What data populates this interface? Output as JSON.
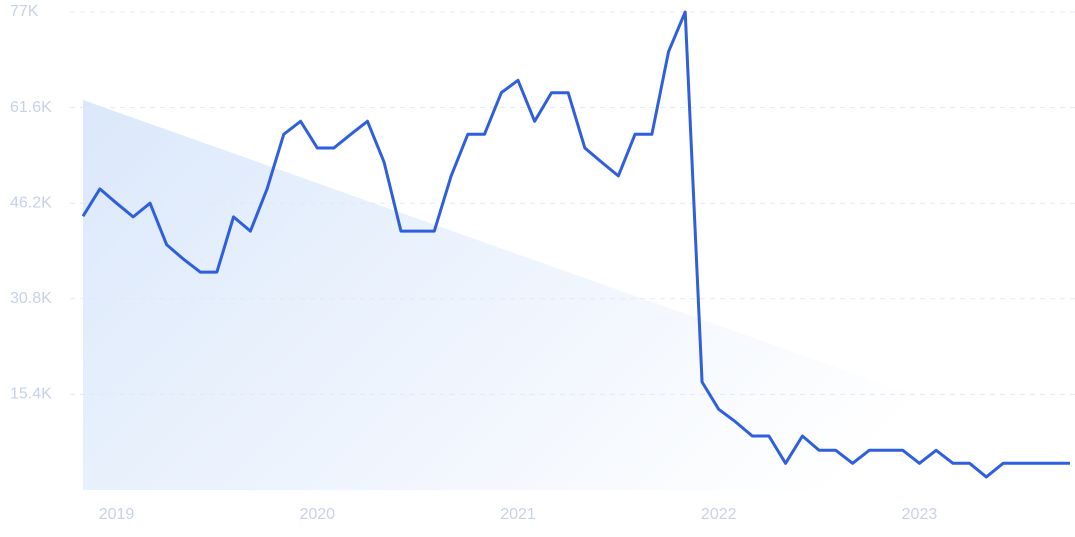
{
  "chart_data": {
    "type": "line",
    "x": [
      2018.833,
      2018.917,
      2019,
      2019.083,
      2019.167,
      2019.25,
      2019.333,
      2019.417,
      2019.5,
      2019.583,
      2019.667,
      2019.75,
      2019.833,
      2019.917,
      2020,
      2020.083,
      2020.167,
      2020.25,
      2020.333,
      2020.417,
      2020.5,
      2020.583,
      2020.667,
      2020.75,
      2020.833,
      2020.917,
      2021,
      2021.083,
      2021.167,
      2021.25,
      2021.333,
      2021.417,
      2021.5,
      2021.583,
      2021.667,
      2021.75,
      2021.833,
      2021.917,
      2022,
      2022.083,
      2022.167,
      2022.25,
      2022.333,
      2022.417,
      2022.5,
      2022.583,
      2022.667,
      2022.75,
      2022.833,
      2022.917,
      2023,
      2023.083,
      2023.167,
      2023.25,
      2023.333,
      2023.417,
      2023.5,
      2023.583,
      2023.667,
      2023.75
    ],
    "series": [
      {
        "color": "#2f5fdc",
        "values": [
          44100,
          48500,
          46200,
          44000,
          46200,
          39500,
          37200,
          35100,
          35100,
          44000,
          41700,
          48500,
          57300,
          59400,
          55100,
          55100,
          57300,
          59400,
          52800,
          41700,
          41700,
          41700,
          50600,
          57300,
          57300,
          64000,
          66000,
          59400,
          64000,
          64000,
          55100,
          52800,
          50600,
          57300,
          57300,
          70600,
          77000,
          17400,
          13000,
          11000,
          8700,
          8700,
          4300,
          8700,
          6400,
          6400,
          4300,
          6400,
          6400,
          6400,
          4300,
          6400,
          4300,
          4300,
          2100,
          4300,
          4300,
          4300,
          4300,
          4300
        ]
      }
    ],
    "xlim": [
      2018.833,
      2023.75
    ],
    "xticks": [
      2019,
      2020,
      2021,
      2022,
      2023
    ],
    "ylim": [
      0,
      77000
    ],
    "yticks": [
      {
        "value": 15400,
        "label": "15.4K"
      },
      {
        "value": 30800,
        "label": "30.8K"
      },
      {
        "value": 46200,
        "label": "46.2K"
      },
      {
        "value": 61600,
        "label": "61.6K"
      },
      {
        "value": 77000,
        "label": "77K"
      }
    ],
    "grid": true
  }
}
